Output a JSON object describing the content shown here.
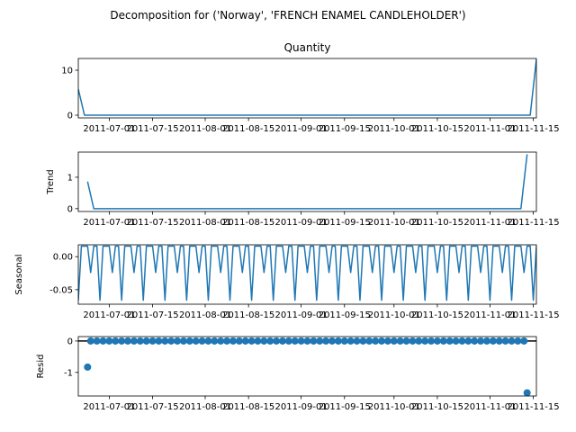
{
  "chart_data": {
    "type": "line",
    "title": "Decomposition for ('Norway', 'FRENCH ENAMEL CANDLEHOLDER')",
    "x_tick_labels": [
      "2011-07-01",
      "2011-07-15",
      "2011-08-01",
      "2011-08-15",
      "2011-09-01",
      "2011-09-15",
      "2011-10-01",
      "2011-10-15",
      "2011-11-01",
      "2011-11-15"
    ],
    "x_range": [
      "2011-06-21",
      "2011-11-16"
    ],
    "panels": [
      {
        "key": "observed",
        "title": "Quantity",
        "ylabel": "",
        "ylim": [
          -0.6,
          12.6
        ],
        "yticks": [
          0,
          10
        ],
        "style": "line",
        "points": [
          [
            "2011-06-21",
            5.8
          ],
          [
            "2011-06-23",
            0
          ],
          [
            "2011-11-14",
            0
          ],
          [
            "2011-11-16",
            12.4
          ]
        ]
      },
      {
        "key": "trend",
        "title": "",
        "ylabel": "Trend",
        "ylim": [
          -0.09,
          1.8
        ],
        "yticks": [
          0,
          1
        ],
        "style": "line",
        "points": [
          [
            "2011-06-24",
            0.86
          ],
          [
            "2011-06-26",
            0
          ],
          [
            "2011-11-11",
            0
          ],
          [
            "2011-11-13",
            1.73
          ]
        ]
      },
      {
        "key": "seasonal",
        "title": "",
        "ylabel": "Seasonal",
        "ylim": [
          -0.072,
          0.018
        ],
        "yticks": [
          0.0,
          -0.05
        ],
        "style": "line",
        "period": 7,
        "start": "2011-06-21",
        "end": "2011-11-16",
        "weekly_pattern": [
          -0.066,
          0.016,
          0.016,
          0.016,
          -0.024,
          0.016,
          0.016
        ]
      },
      {
        "key": "resid",
        "title": "",
        "ylabel": "Resid",
        "ylim": [
          -1.75,
          0.14
        ],
        "yticks": [
          0,
          -1
        ],
        "style": "scatter",
        "zero_line": true,
        "outliers": [
          [
            "2011-06-24",
            -0.83
          ],
          [
            "2011-11-13",
            -1.65
          ]
        ],
        "zero_span": [
          "2011-06-25",
          "2011-11-12"
        ],
        "zero_step_days": 2
      }
    ],
    "color": "#1f77b4"
  }
}
